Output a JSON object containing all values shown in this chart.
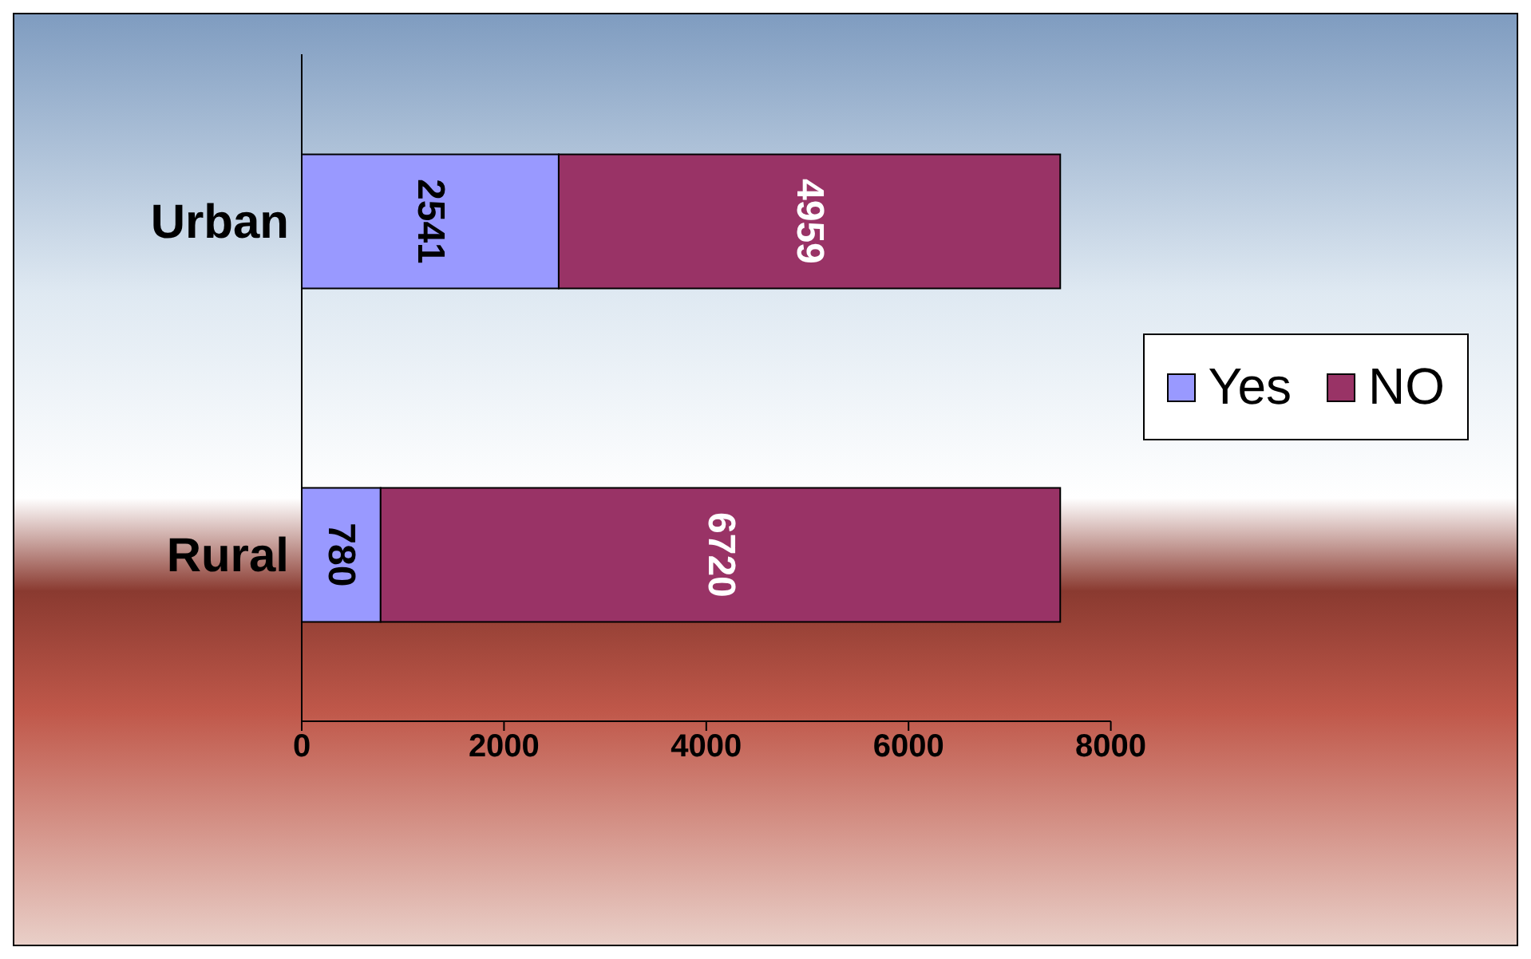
{
  "chart_data": {
    "type": "bar",
    "orientation": "horizontal",
    "stacked": true,
    "categories": [
      "Urban",
      "Rural"
    ],
    "series": [
      {
        "name": "Yes",
        "color": "#9999ff",
        "values": [
          2541,
          780
        ]
      },
      {
        "name": "NO",
        "color": "#993366",
        "values": [
          4959,
          6720
        ]
      }
    ],
    "xlim": [
      0,
      8000
    ],
    "xticks": [
      0,
      2000,
      4000,
      6000,
      8000
    ],
    "grid": false,
    "legend": "right",
    "data_labels": true
  }
}
